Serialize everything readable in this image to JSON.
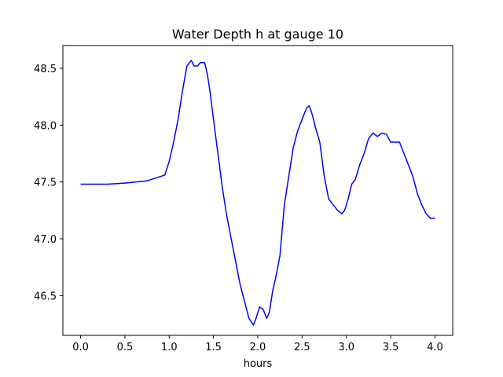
{
  "chart_data": {
    "type": "line",
    "title": "Water Depth h at gauge 10",
    "xlabel": "hours",
    "ylabel": "",
    "xlim": [
      -0.2,
      4.2
    ],
    "ylim": [
      46.15,
      48.7
    ],
    "xticks": [
      0.0,
      0.5,
      1.0,
      1.5,
      2.0,
      2.5,
      3.0,
      3.5,
      4.0
    ],
    "xtick_labels": [
      "0.0",
      "0.5",
      "1.0",
      "1.5",
      "2.0",
      "2.5",
      "3.0",
      "3.5",
      "4.0"
    ],
    "yticks": [
      46.5,
      47.0,
      47.5,
      48.0,
      48.5
    ],
    "ytick_labels": [
      "46.5",
      "47.0",
      "47.5",
      "48.0",
      "48.5"
    ],
    "grid": false,
    "series": [
      {
        "color": "#0000ff",
        "x": [
          0.0,
          0.3,
          0.5,
          0.75,
          0.95,
          1.0,
          1.05,
          1.1,
          1.15,
          1.2,
          1.25,
          1.28,
          1.32,
          1.35,
          1.4,
          1.43,
          1.46,
          1.5,
          1.55,
          1.6,
          1.65,
          1.7,
          1.75,
          1.8,
          1.85,
          1.9,
          1.95,
          1.98,
          2.02,
          2.06,
          2.1,
          2.13,
          2.17,
          2.2,
          2.25,
          2.3,
          2.35,
          2.4,
          2.45,
          2.5,
          2.55,
          2.58,
          2.6,
          2.63,
          2.65,
          2.7,
          2.75,
          2.8,
          2.85,
          2.9,
          2.95,
          2.98,
          3.02,
          3.06,
          3.1,
          3.15,
          3.2,
          3.25,
          3.3,
          3.35,
          3.4,
          3.45,
          3.48,
          3.5,
          3.55,
          3.6,
          3.65,
          3.7,
          3.75,
          3.8,
          3.85,
          3.9,
          3.95,
          4.0
        ],
        "y": [
          47.48,
          47.48,
          47.49,
          47.51,
          47.56,
          47.68,
          47.85,
          48.05,
          48.3,
          48.52,
          48.57,
          48.52,
          48.52,
          48.55,
          48.55,
          48.45,
          48.3,
          48.05,
          47.75,
          47.45,
          47.2,
          47.0,
          46.8,
          46.6,
          46.45,
          46.3,
          46.24,
          46.3,
          46.4,
          46.38,
          46.3,
          46.35,
          46.55,
          46.65,
          46.85,
          47.3,
          47.55,
          47.8,
          47.95,
          48.05,
          48.15,
          48.17,
          48.13,
          48.05,
          47.98,
          47.85,
          47.55,
          47.35,
          47.3,
          47.25,
          47.22,
          47.25,
          47.35,
          47.48,
          47.52,
          47.65,
          47.75,
          47.88,
          47.93,
          47.9,
          47.93,
          47.92,
          47.88,
          47.85,
          47.85,
          47.85,
          47.75,
          47.65,
          47.55,
          47.4,
          47.3,
          47.22,
          47.18,
          47.18
        ]
      }
    ]
  }
}
